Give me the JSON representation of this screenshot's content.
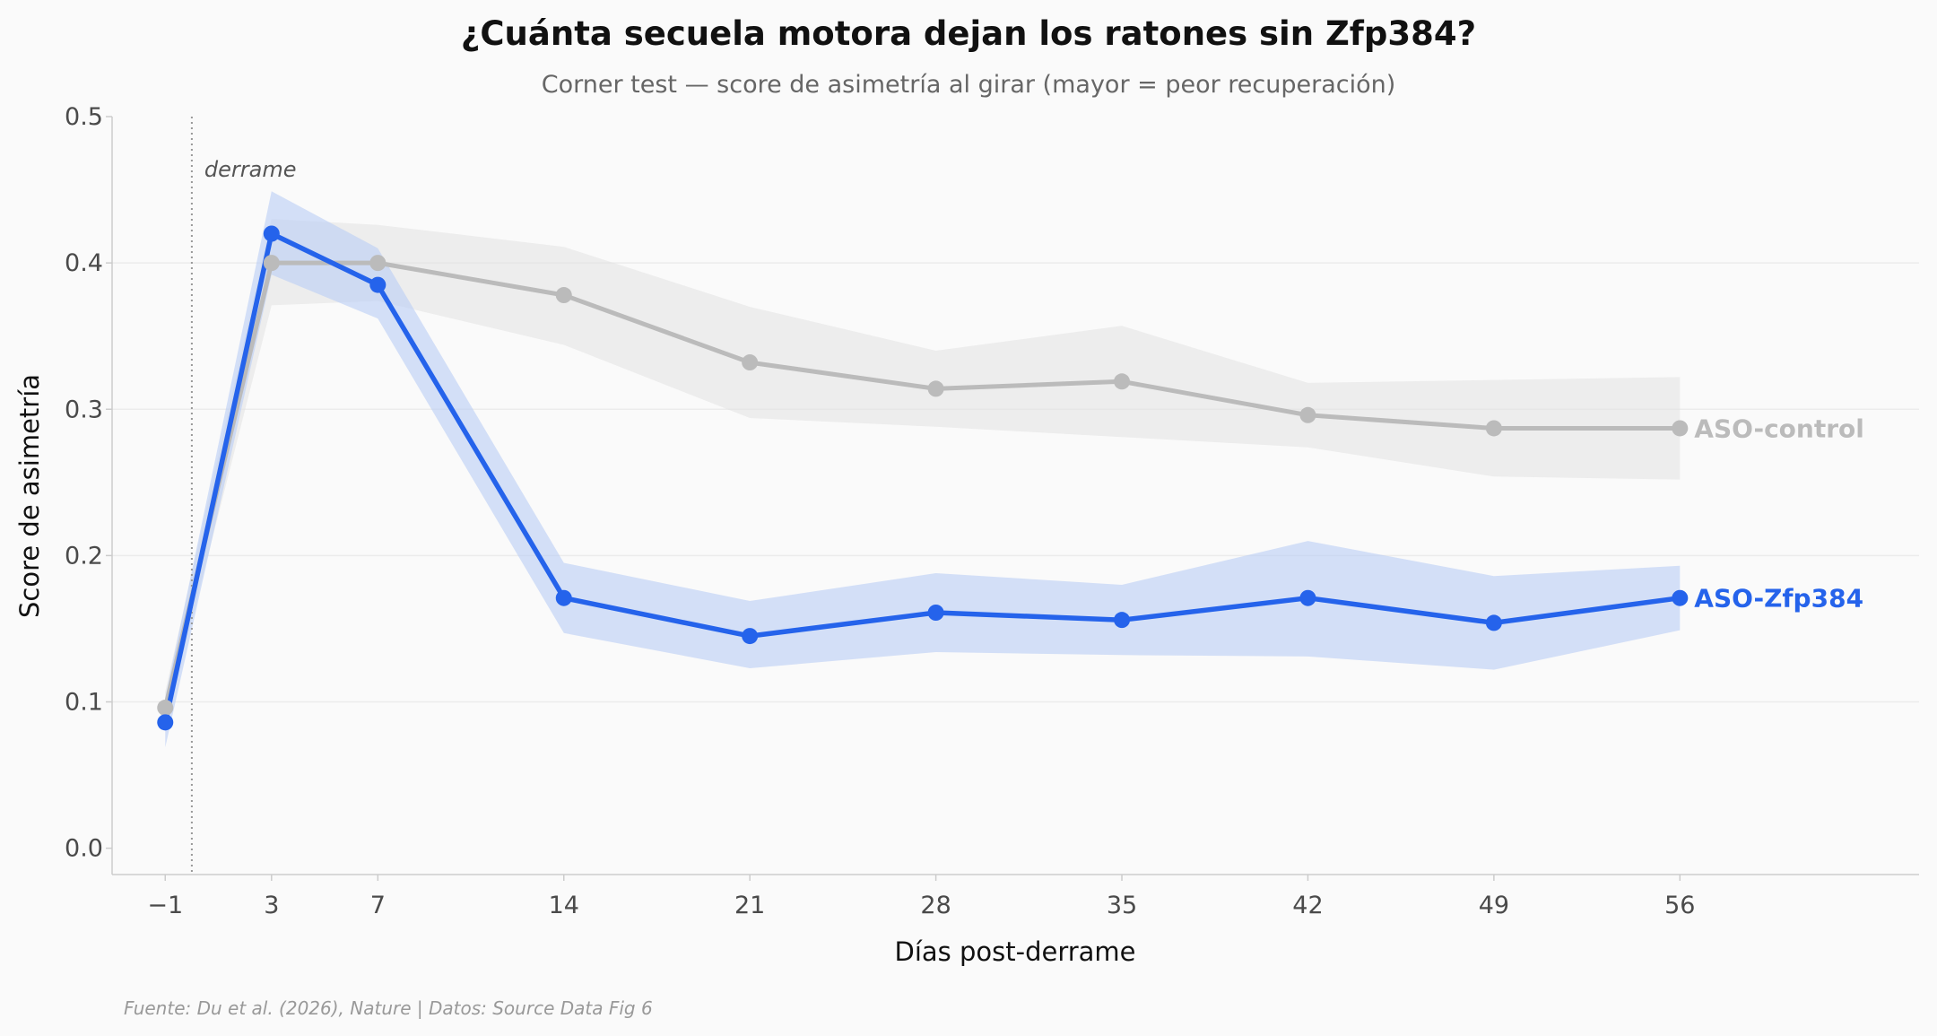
{
  "chart_data": {
    "type": "line",
    "title": "¿Cuánta secuela motora dejan los ratones sin Zfp384?",
    "subtitle": "Corner test — score de asimetría al girar (mayor = peor recuperación)",
    "xlabel": "Días post-derrame",
    "ylabel": "Score de asimetría",
    "x": [
      -1,
      3,
      7,
      14,
      21,
      28,
      35,
      42,
      49,
      56
    ],
    "x_tick_labels": [
      "−1",
      "3",
      "7",
      "14",
      "21",
      "28",
      "35",
      "42",
      "49",
      "56"
    ],
    "y_ticks": [
      0.0,
      0.1,
      0.2,
      0.3,
      0.4,
      0.5
    ],
    "y_tick_labels": [
      "0.0",
      "0.1",
      "0.2",
      "0.3",
      "0.4",
      "0.5"
    ],
    "xlim": [
      -3,
      65
    ],
    "ylim": [
      -0.018,
      0.5
    ],
    "grid": "horizontal",
    "series": [
      {
        "name": "ASO-control",
        "color": "#bbbbbb",
        "band_color": "#e0e0e0",
        "values": [
          0.096,
          0.4,
          0.4,
          0.378,
          0.332,
          0.314,
          0.319,
          0.296,
          0.287,
          0.287
        ],
        "lower": [
          0.085,
          0.371,
          0.374,
          0.344,
          0.294,
          0.288,
          0.281,
          0.274,
          0.254,
          0.252
        ],
        "upper": [
          0.107,
          0.43,
          0.426,
          0.411,
          0.37,
          0.34,
          0.357,
          0.318,
          0.32,
          0.322
        ]
      },
      {
        "name": "ASO-Zfp384",
        "color": "#2563eb",
        "band_color": "#b9cdf5",
        "values": [
          0.086,
          0.42,
          0.385,
          0.171,
          0.145,
          0.161,
          0.156,
          0.171,
          0.154,
          0.171
        ],
        "lower": [
          0.069,
          0.392,
          0.362,
          0.147,
          0.123,
          0.134,
          0.132,
          0.131,
          0.122,
          0.149
        ],
        "upper": [
          0.103,
          0.449,
          0.41,
          0.195,
          0.169,
          0.188,
          0.18,
          0.21,
          0.186,
          0.193
        ]
      }
    ],
    "annotations": [
      {
        "text": "derrame",
        "x": 0,
        "style": "dotted-vline"
      }
    ],
    "source": "Fuente: Du et al. (2026), Nature | Datos: Source Data Fig 6"
  }
}
